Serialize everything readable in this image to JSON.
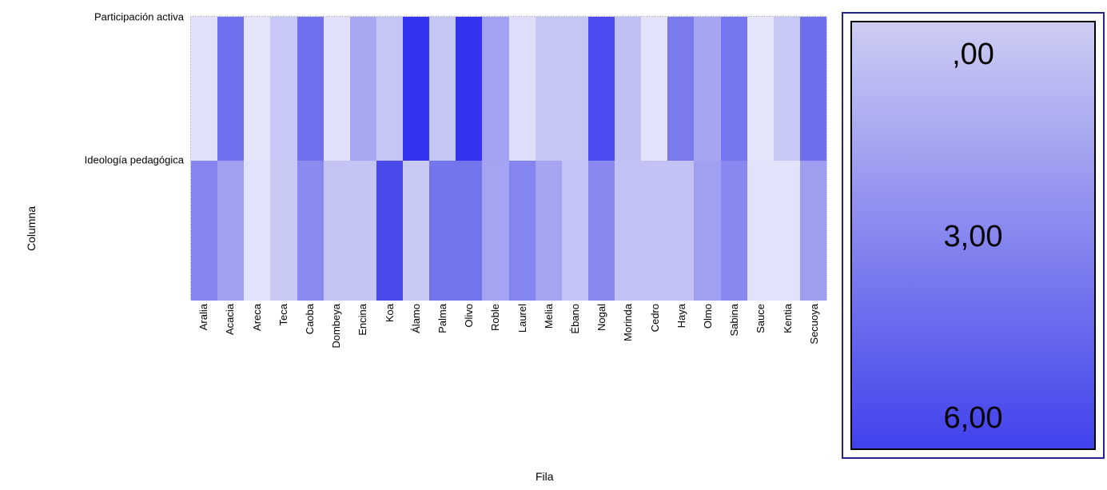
{
  "page": {
    "background": "#ffffff",
    "text_color": "#000000"
  },
  "chart_data": {
    "type": "heatmap",
    "title": "",
    "xlabel": "Fila",
    "ylabel": "Columna",
    "rows": [
      "Participación activa",
      "Ideología pedagógica"
    ],
    "categories": [
      "Aralia",
      "Acacia",
      "Areca",
      "Teca",
      "Caoba",
      "Dombeya",
      "Encina",
      "Koa",
      "Álamo",
      "Palma",
      "Olivo",
      "Roble",
      "Laurel",
      "Melia",
      "Ébano",
      "Nogal",
      "Morinda",
      "Cedro",
      "Haya",
      "Olmo",
      "Sabina",
      "Sauce",
      "Kentia",
      "Secuoya"
    ],
    "series": [
      {
        "name": "Participación activa",
        "values": [
          0.9,
          4.3,
          0.8,
          1.6,
          4.3,
          0.9,
          2.6,
          1.7,
          6.0,
          1.7,
          6.0,
          2.7,
          1.0,
          1.7,
          1.7,
          5.3,
          1.9,
          0.9,
          3.9,
          2.6,
          4.1,
          0.8,
          1.6,
          4.2
        ]
      },
      {
        "name": "Ideología pedagógica",
        "values": [
          3.6,
          2.8,
          0.9,
          1.6,
          3.5,
          1.7,
          1.7,
          5.4,
          1.6,
          4.0,
          4.0,
          2.7,
          3.6,
          2.7,
          1.7,
          3.5,
          1.8,
          1.8,
          1.8,
          2.8,
          3.5,
          0.9,
          0.9,
          3.0
        ]
      }
    ],
    "cell_colors": [
      [
        "#e0e0fa",
        "#7070ee",
        "#e4e4fb",
        "#c8c8f6",
        "#7070ee",
        "#e0e0fa",
        "#a8a8f2",
        "#c5c5f6",
        "#3434f0",
        "#c5c5f6",
        "#3434f0",
        "#a2a2f2",
        "#dedefb",
        "#c6c6f5",
        "#c6c6f5",
        "#4b4bf1",
        "#c0c0f5",
        "#e2e2fa",
        "#7a7aee",
        "#a5a5f2",
        "#7575ee",
        "#e5e5fb",
        "#c8c8f6",
        "#6f6fee"
      ],
      [
        "#8585ef",
        "#a0a0f1",
        "#e2e2fa",
        "#c8c8f5",
        "#8a8aef",
        "#c4c4f5",
        "#c4c4f5",
        "#4a4aea",
        "#c9c9f5",
        "#7474ed",
        "#7474ed",
        "#a4a4f2",
        "#8585f0",
        "#a4a4f2",
        "#c4c4f6",
        "#8888f0",
        "#c2c2f5",
        "#c2c2f5",
        "#c2c2f5",
        "#a0a0f2",
        "#8888f0",
        "#e2e2fa",
        "#e2e2fa",
        "#9e9ef1"
      ]
    ],
    "colorbar": {
      "labels": [
        ",00",
        "3,00",
        "6,00"
      ],
      "min": 0,
      "max": 6,
      "top_color": "#cdcdf3",
      "bottom_color": "#4141ec"
    },
    "legend_position": "right",
    "axis_ranges": {
      "x_categories": 24,
      "y_categories": 2
    },
    "grid": false
  }
}
